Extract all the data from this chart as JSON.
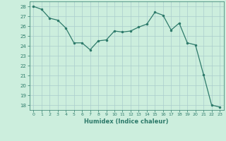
{
  "x": [
    0,
    1,
    2,
    3,
    4,
    5,
    6,
    7,
    8,
    9,
    10,
    11,
    12,
    13,
    14,
    15,
    16,
    17,
    18,
    19,
    20,
    21,
    22,
    23
  ],
  "y": [
    28.0,
    27.7,
    26.8,
    26.6,
    25.8,
    24.3,
    24.3,
    23.6,
    24.5,
    24.6,
    25.5,
    25.4,
    25.5,
    25.9,
    26.2,
    27.4,
    27.1,
    25.6,
    26.3,
    24.3,
    24.1,
    21.1,
    18.0,
    17.8
  ],
  "xlabel": "Humidex (Indice chaleur)",
  "xlim": [
    -0.5,
    23.5
  ],
  "ylim": [
    17.5,
    28.5
  ],
  "yticks": [
    18,
    19,
    20,
    21,
    22,
    23,
    24,
    25,
    26,
    27,
    28
  ],
  "xticks": [
    0,
    1,
    2,
    3,
    4,
    5,
    6,
    7,
    8,
    9,
    10,
    11,
    12,
    13,
    14,
    15,
    16,
    17,
    18,
    19,
    20,
    21,
    22,
    23
  ],
  "line_color": "#2d7a6a",
  "bg_color": "#cceedd",
  "grid_color": "#aacccc"
}
